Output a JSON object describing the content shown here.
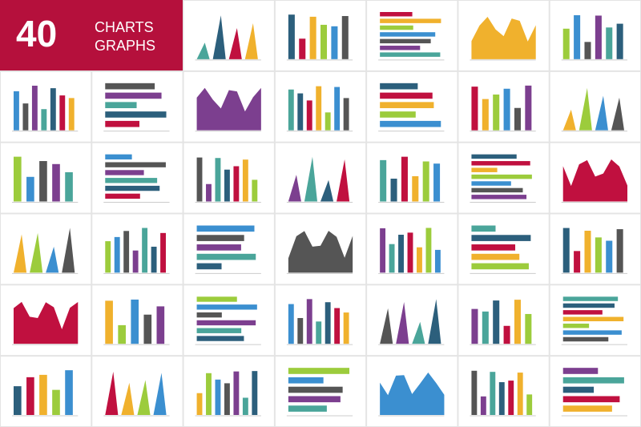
{
  "header": {
    "number": "40",
    "line1": "CHARTS",
    "line2": "GRAPHS"
  }
}
